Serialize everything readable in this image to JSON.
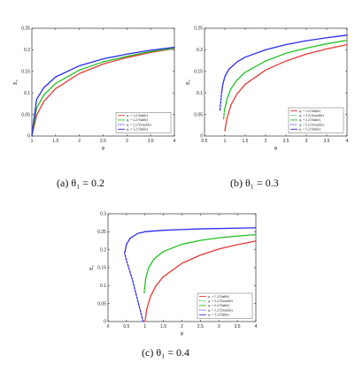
{
  "captions": [
    "(a) θ₁ = 0.2",
    "(b) θ₁ = 0.3",
    "(c) θ₁ = 0.4"
  ],
  "chart_data": [
    {
      "type": "line",
      "xlabel": "φ",
      "ylabel": "E₀",
      "xlim": [
        1,
        4
      ],
      "ylim": [
        0,
        0.25
      ],
      "xticks": [
        "1",
        "1.5",
        "2",
        "2.5",
        "3",
        "3.5",
        "4"
      ],
      "yticks": [
        "0",
        "0.05",
        "0.1",
        "0.15",
        "0.2",
        "0.25"
      ],
      "legend_position": "bottom-right",
      "series": [
        {
          "name": "φ₁ = 1.2 (Stable)",
          "color": "#e53935",
          "dash": "solid",
          "x": [
            1.0,
            1.1,
            1.25,
            1.5,
            2.0,
            2.5,
            3.0,
            3.5,
            4.0
          ],
          "y": [
            0.0,
            0.048,
            0.08,
            0.11,
            0.145,
            0.167,
            0.182,
            0.194,
            0.203
          ]
        },
        {
          "name": "φ₁ = 2.2 (Stable)",
          "color": "#22c022",
          "dash": "solid",
          "x": [
            1.0,
            1.1,
            1.25,
            1.5,
            2.0,
            2.5,
            3.0,
            3.5,
            4.0
          ],
          "y": [
            0.0,
            0.065,
            0.095,
            0.122,
            0.153,
            0.172,
            0.185,
            0.196,
            0.204
          ]
        },
        {
          "name": "φ₁ = 3.2 (Unstable)",
          "color": "#2a2aef",
          "dash": "dashed",
          "x": [
            1.0,
            1.02
          ],
          "y": [
            0.0,
            0.02
          ]
        },
        {
          "name": "φ₁ = 3.2 (Stable)",
          "color": "#2a2aef",
          "dash": "solid",
          "x": [
            1.02,
            1.1,
            1.25,
            1.5,
            2.0,
            2.5,
            3.0,
            3.5,
            4.0
          ],
          "y": [
            0.02,
            0.085,
            0.112,
            0.137,
            0.163,
            0.179,
            0.19,
            0.199,
            0.206
          ]
        }
      ]
    },
    {
      "type": "line",
      "xlabel": "φ",
      "ylabel": "E₀",
      "xlim": [
        0.5,
        4
      ],
      "ylim": [
        0,
        0.25
      ],
      "xticks": [
        "0.5",
        "1",
        "1.5",
        "2",
        "2.5",
        "3",
        "3.5",
        "4"
      ],
      "yticks": [
        "0",
        "0.05",
        "0.1",
        "0.15",
        "0.2",
        "0.25"
      ],
      "legend_position": "bottom-right",
      "series": [
        {
          "name": "φ₁ = 1.2 (Stable)",
          "color": "#e53935",
          "dash": "solid",
          "x": [
            1.0,
            1.05,
            1.15,
            1.3,
            1.5,
            2.0,
            2.5,
            3.0,
            3.5,
            4.0
          ],
          "y": [
            0.012,
            0.04,
            0.072,
            0.098,
            0.12,
            0.153,
            0.174,
            0.19,
            0.202,
            0.212
          ]
        },
        {
          "name": "φ₁ = 2.2 (Unstable)",
          "color": "#22c022",
          "dash": "dashed",
          "x": [
            0.97,
            0.99
          ],
          "y": [
            0.04,
            0.06
          ]
        },
        {
          "name": "φ₁ = 2.2 (Stable)",
          "color": "#22c022",
          "dash": "solid",
          "x": [
            0.99,
            1.05,
            1.15,
            1.3,
            1.5,
            2.0,
            2.5,
            3.0,
            3.5,
            4.0
          ],
          "y": [
            0.06,
            0.085,
            0.11,
            0.13,
            0.148,
            0.174,
            0.192,
            0.204,
            0.214,
            0.222
          ]
        },
        {
          "name": "φ₁ = 3.2 (Unstable)",
          "color": "#2a2aef",
          "dash": "dashed",
          "x": [
            0.88,
            0.9,
            0.92
          ],
          "y": [
            0.06,
            0.08,
            0.1
          ]
        },
        {
          "name": "φ₁ = 3.2 (Stable)",
          "color": "#2a2aef",
          "dash": "solid",
          "x": [
            0.92,
            0.95,
            1.0,
            1.1,
            1.3,
            1.5,
            2.0,
            2.5,
            3.0,
            3.5,
            4.0
          ],
          "y": [
            0.1,
            0.12,
            0.138,
            0.155,
            0.172,
            0.183,
            0.2,
            0.212,
            0.221,
            0.228,
            0.234
          ]
        }
      ]
    },
    {
      "type": "line",
      "xlabel": "φ",
      "ylabel": "E₀",
      "xlim": [
        0,
        4
      ],
      "ylim": [
        0,
        0.3
      ],
      "xticks": [
        "0",
        "0.5",
        "1",
        "1.5",
        "2",
        "2.5",
        "3",
        "3.5",
        "4"
      ],
      "yticks": [
        "0",
        "0.05",
        "0.1",
        "0.15",
        "0.2",
        "0.25",
        "0.3"
      ],
      "legend_position": "bottom-right",
      "series": [
        {
          "name": "φ₁ = 1.2 (Stable)",
          "color": "#e53935",
          "dash": "solid",
          "x": [
            1.0,
            1.05,
            1.15,
            1.3,
            1.5,
            2.0,
            2.5,
            3.0,
            3.5,
            4.0
          ],
          "y": [
            0.0,
            0.035,
            0.07,
            0.1,
            0.125,
            0.162,
            0.185,
            0.202,
            0.214,
            0.224
          ]
        },
        {
          "name": "φ₁ = 2.2 (Unstable)",
          "color": "#22c022",
          "dash": "dashed",
          "x": [
            0.98,
            0.99
          ],
          "y": [
            0.08,
            0.09
          ]
        },
        {
          "name": "φ₁ = 2.2 (Stable)",
          "color": "#22c022",
          "dash": "solid",
          "x": [
            0.99,
            1.02,
            1.1,
            1.25,
            1.5,
            2.0,
            2.5,
            3.0,
            3.5,
            4.0
          ],
          "y": [
            0.09,
            0.12,
            0.15,
            0.175,
            0.195,
            0.215,
            0.226,
            0.233,
            0.238,
            0.242
          ]
        },
        {
          "name": "φ₁ = 3.2 (Unstable)",
          "color": "#2a2aef",
          "dash": "dashed",
          "x": [
            0.95,
            0.8,
            0.65,
            0.5,
            0.45
          ],
          "y": [
            0.0,
            0.06,
            0.12,
            0.17,
            0.19
          ]
        },
        {
          "name": "φ₁ = 3.2 (Stable)",
          "color": "#2a2aef",
          "dash": "solid",
          "x": [
            0.45,
            0.5,
            0.6,
            0.8,
            1.0,
            1.5,
            2.0,
            2.5,
            3.0,
            3.5,
            4.0
          ],
          "y": [
            0.19,
            0.215,
            0.232,
            0.245,
            0.25,
            0.254,
            0.256,
            0.258,
            0.259,
            0.26,
            0.261
          ]
        }
      ]
    }
  ]
}
